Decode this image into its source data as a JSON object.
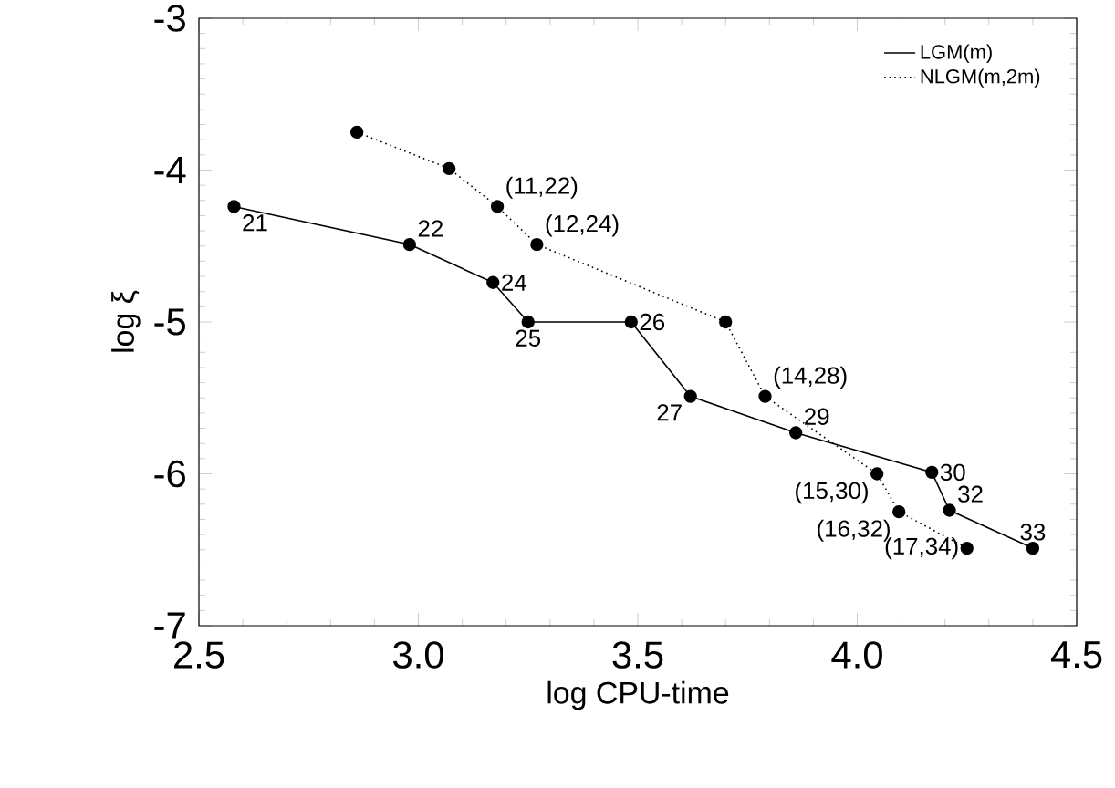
{
  "chart_data": {
    "type": "line",
    "xlabel": "log CPU-time",
    "ylabel": "log ξ",
    "xlim": [
      2.5,
      4.5
    ],
    "xticks": [
      {
        "value": 2.5,
        "label": "2.5"
      },
      {
        "value": 3.0,
        "label": "3.0"
      },
      {
        "value": 3.5,
        "label": "3.5"
      },
      {
        "value": 4.0,
        "label": "4.0"
      },
      {
        "value": 4.5,
        "label": "4.5"
      }
    ],
    "ylim": [
      -7,
      -3
    ],
    "yticks": [
      -7,
      -6,
      -5,
      -4,
      -3
    ],
    "marker": "circle",
    "legend": "top right",
    "grid": false,
    "series": [
      {
        "name": "LGM(m)",
        "color": "#000000",
        "line_style": "solid",
        "x": [
          2.58,
          2.98,
          3.17,
          3.25,
          3.485,
          3.62,
          3.86,
          4.17,
          4.21,
          4.4
        ],
        "values": [
          -4.24,
          -4.49,
          -4.74,
          -5.0,
          -5.0,
          -5.49,
          -5.73,
          -5.99,
          -6.24,
          -6.49
        ]
      },
      {
        "name": "NLGM(m,2m)",
        "color": "#000000",
        "line_style": "dotted",
        "x": [
          2.86,
          3.07,
          3.18,
          3.27,
          3.7,
          3.79,
          4.045,
          4.095,
          4.25
        ],
        "values": [
          -3.75,
          -3.99,
          -4.24,
          -4.49,
          -5.0,
          -5.49,
          -6.0,
          -6.25,
          -6.49
        ]
      }
    ],
    "annotations": [
      {
        "text": "21",
        "x": 2.58,
        "y": -4.24
      },
      {
        "text": "22",
        "x": 2.98,
        "y": -4.49
      },
      {
        "text": "24",
        "x": 3.17,
        "y": -4.74
      },
      {
        "text": "25",
        "x": 3.25,
        "y": -5.0
      },
      {
        "text": "26",
        "x": 3.485,
        "y": -5.0
      },
      {
        "text": "27",
        "x": 3.62,
        "y": -5.49
      },
      {
        "text": "29",
        "x": 3.86,
        "y": -5.73
      },
      {
        "text": "30",
        "x": 4.17,
        "y": -5.99
      },
      {
        "text": "32",
        "x": 4.21,
        "y": -6.24
      },
      {
        "text": "33",
        "x": 4.4,
        "y": -6.49
      },
      {
        "text": "(11,22)",
        "x": 3.18,
        "y": -4.24
      },
      {
        "text": "(12,24)",
        "x": 3.27,
        "y": -4.49
      },
      {
        "text": "(14,28)",
        "x": 3.79,
        "y": -5.49
      },
      {
        "text": "(15,30)",
        "x": 4.045,
        "y": -6.0
      },
      {
        "text": "(16,32)",
        "x": 4.095,
        "y": -6.25
      },
      {
        "text": "(17,34)",
        "x": 4.25,
        "y": -6.49
      }
    ]
  }
}
